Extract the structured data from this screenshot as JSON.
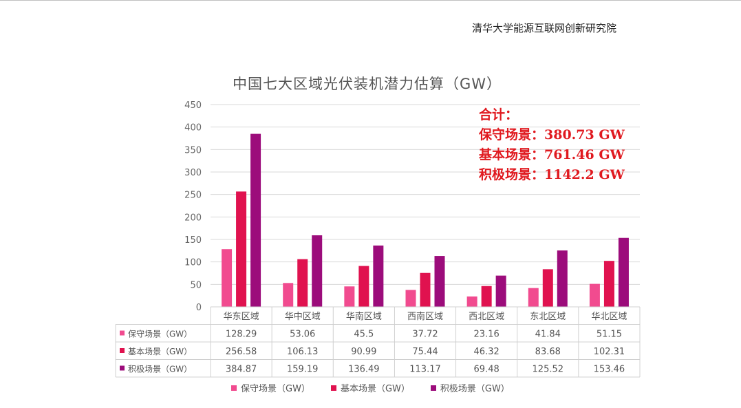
{
  "header": {
    "org": "清华大学能源互联网创新研究院"
  },
  "colors": {
    "conservative": "#f14b8f",
    "basic": "#e0124f",
    "aggressive": "#9c0c7b",
    "summary_red": "#e0191f"
  },
  "summary": {
    "heading": "合计：",
    "lines": [
      "保守场景：380.73 GW",
      "基本场景：761.46 GW",
      "积极场景：1142.2 GW"
    ]
  },
  "chart_data": {
    "type": "bar",
    "title": "中国七大区域光伏装机潜力估算（GW）",
    "categories": [
      "华东区域",
      "华中区域",
      "华南区域",
      "西南区域",
      "西北区域",
      "东北区域",
      "华北区域"
    ],
    "series": [
      {
        "name": "保守场景（GW）",
        "values": [
          128.29,
          53.06,
          45.5,
          37.72,
          23.16,
          41.84,
          51.15
        ]
      },
      {
        "name": "基本场景（GW）",
        "values": [
          256.58,
          106.13,
          90.99,
          75.44,
          46.32,
          83.68,
          102.31
        ]
      },
      {
        "name": "积极场景（GW）",
        "values": [
          384.87,
          159.19,
          136.49,
          113.17,
          69.48,
          125.52,
          153.46
        ]
      }
    ],
    "ylim": [
      0,
      450
    ],
    "yticks": [
      0,
      50,
      100,
      150,
      200,
      250,
      300,
      350,
      400,
      450
    ],
    "grid": true,
    "legend_position": "bottom"
  }
}
